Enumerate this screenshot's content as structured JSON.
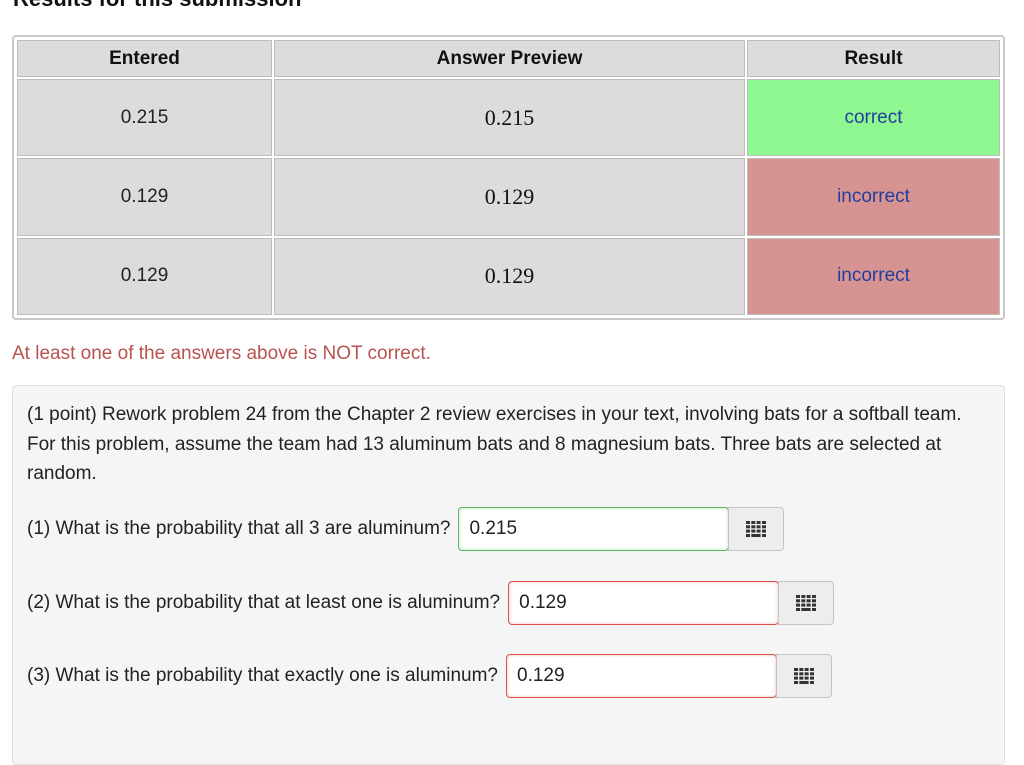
{
  "page": {
    "heading": "Results for this submission"
  },
  "results": {
    "headers": [
      "Entered",
      "Answer Preview",
      "Result"
    ],
    "rows": [
      {
        "entered": "0.215",
        "preview": "0.215",
        "result": "correct",
        "status": "correct"
      },
      {
        "entered": "0.129",
        "preview": "0.129",
        "result": "incorrect",
        "status": "incorrect"
      },
      {
        "entered": "0.129",
        "preview": "0.129",
        "result": "incorrect",
        "status": "incorrect"
      }
    ],
    "warning": "At least one of the answers above is NOT correct."
  },
  "problem": {
    "text": "(1 point) Rework problem 24 from the Chapter 2 review exercises in your text, involving bats for a softball team. For this problem, assume the team had 13 aluminum bats and 8 magnesium bats. Three bats are selected at random.",
    "questions": [
      {
        "label": "(1) What is the probability that all 3 are aluminum?",
        "value": "0.215",
        "status": "correct",
        "palette_icon": "equation-palette-icon"
      },
      {
        "label": "(2) What is the probability that at least one is aluminum?",
        "value": "0.129",
        "status": "incorrect",
        "palette_icon": "equation-palette-icon"
      },
      {
        "label": "(3) What is the probability that exactly one is aluminum?",
        "value": "0.129",
        "status": "incorrect",
        "palette_icon": "equation-palette-icon"
      }
    ]
  },
  "colors": {
    "correct_bg": "#8ff78f",
    "incorrect_bg": "#d79391",
    "result_text": "#233f9c",
    "warning_text": "#b9524f"
  }
}
